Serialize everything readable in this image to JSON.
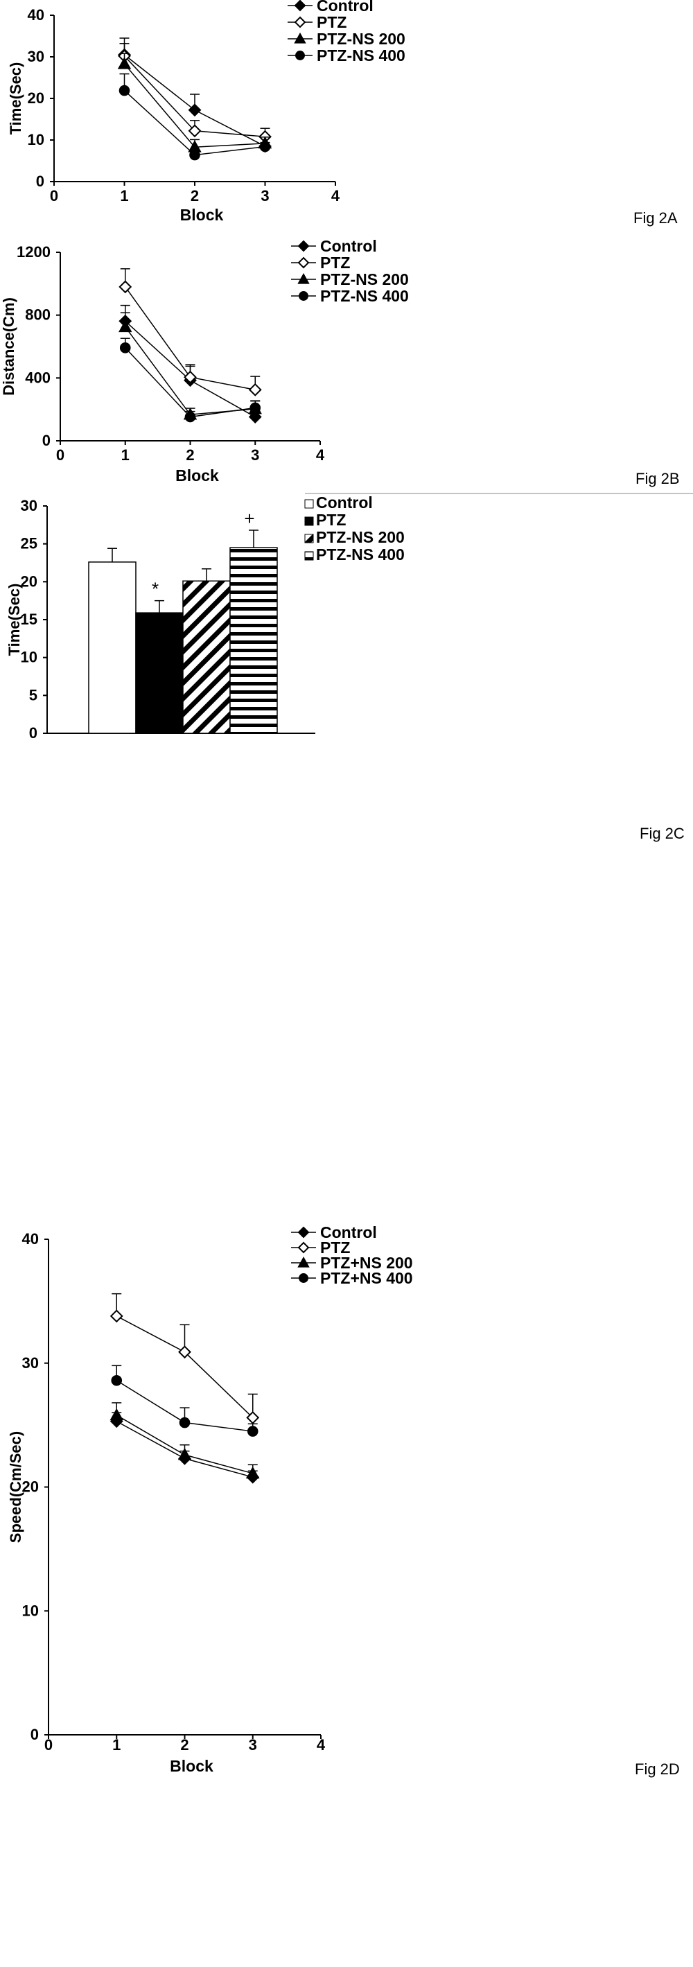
{
  "chart_data": [
    {
      "type": "line",
      "figure_label": "Fig 2A",
      "ylabel": "Time(Sec)",
      "xlabel": "Block",
      "xlim": [
        0,
        4
      ],
      "ylim": [
        0,
        40
      ],
      "x_ticks": [
        "0",
        "1",
        "2",
        "3",
        "4"
      ],
      "y_ticks": [
        "0",
        "10",
        "20",
        "30",
        "40"
      ],
      "legend_position": "top-right",
      "x": [
        1,
        2,
        3
      ],
      "series": [
        {
          "name": "Control",
          "marker": "diamond",
          "filled": true,
          "values": [
            30.5,
            17.2,
            8.5
          ],
          "errors": [
            4.0,
            3.8,
            2.0
          ]
        },
        {
          "name": "PTZ",
          "marker": "diamond",
          "filled": false,
          "values": [
            30.2,
            12.2,
            10.8
          ],
          "errors": [
            3.0,
            2.5,
            2.0
          ]
        },
        {
          "name": "PTZ-NS 200",
          "marker": "triangle",
          "filled": true,
          "values": [
            28.3,
            8.3,
            9.2
          ],
          "errors": [
            2.5,
            1.8,
            1.5
          ]
        },
        {
          "name": "PTZ-NS 400",
          "marker": "circle",
          "filled": true,
          "values": [
            21.9,
            6.4,
            8.4
          ],
          "errors": [
            4.0,
            1.0,
            1.0
          ]
        }
      ]
    },
    {
      "type": "line",
      "figure_label": "Fig 2B",
      "ylabel": "Distance(Cm)",
      "xlabel": "Block",
      "xlim": [
        0,
        4
      ],
      "ylim": [
        0,
        1200
      ],
      "x_ticks": [
        "0",
        "1",
        "2",
        "3",
        "4"
      ],
      "y_ticks": [
        "0",
        "400",
        "800",
        "1200"
      ],
      "legend_position": "top-right",
      "x": [
        1,
        2,
        3
      ],
      "series": [
        {
          "name": "Control",
          "marker": "diamond",
          "filled": true,
          "values": [
            762,
            385,
            152
          ],
          "errors": [
            100,
            90,
            40
          ]
        },
        {
          "name": "PTZ",
          "marker": "diamond",
          "filled": false,
          "values": [
            980,
            405,
            325
          ],
          "errors": [
            115,
            80,
            85
          ]
        },
        {
          "name": "PTZ-NS 200",
          "marker": "triangle",
          "filled": true,
          "values": [
            725,
            167,
            203
          ],
          "errors": [
            90,
            40,
            50
          ]
        },
        {
          "name": "PTZ-NS 400",
          "marker": "circle",
          "filled": true,
          "values": [
            592,
            152,
            210
          ],
          "errors": [
            60,
            35,
            45
          ]
        }
      ]
    },
    {
      "type": "bar",
      "figure_label": "Fig 2C",
      "ylabel": "Time(Sec)",
      "xlabel": "",
      "ylim": [
        0,
        30
      ],
      "y_ticks": [
        "0",
        "5",
        "10",
        "15",
        "20",
        "25",
        "30"
      ],
      "legend_position": "top-right",
      "categories": [
        "Control",
        "PTZ",
        "PTZ-NS 200",
        "PTZ-NS 400"
      ],
      "values": [
        22.6,
        15.9,
        20.1,
        24.5
      ],
      "errors": [
        1.8,
        1.6,
        1.6,
        2.3
      ],
      "patterns": [
        "white",
        "black",
        "diagonal",
        "horizontal"
      ],
      "annotations": [
        "",
        "*",
        "",
        "+"
      ],
      "legend_entries": [
        "Control",
        "PTZ",
        "PTZ-NS 200",
        "PTZ-NS 400"
      ]
    },
    {
      "type": "line",
      "figure_label": "Fig 2D",
      "ylabel": "Speed(Cm/Sec)",
      "xlabel": "Block",
      "xlim": [
        0,
        4
      ],
      "ylim": [
        0,
        40
      ],
      "x_ticks": [
        "0",
        "1",
        "2",
        "3",
        "4"
      ],
      "y_ticks": [
        "0",
        "10",
        "20",
        "30",
        "40"
      ],
      "legend_position": "top-right",
      "x": [
        1,
        2,
        3
      ],
      "series": [
        {
          "name": "Control",
          "marker": "diamond",
          "filled": true,
          "values": [
            25.3,
            22.3,
            20.8
          ],
          "errors": [
            0.7,
            0.6,
            0.5
          ]
        },
        {
          "name": "PTZ",
          "marker": "diamond",
          "filled": false,
          "values": [
            33.8,
            30.9,
            25.6
          ],
          "errors": [
            1.8,
            2.2,
            1.9
          ]
        },
        {
          "name": "PTZ+NS 200",
          "marker": "triangle",
          "filled": true,
          "values": [
            25.8,
            22.6,
            21.1
          ],
          "errors": [
            1.0,
            0.8,
            0.7
          ]
        },
        {
          "name": "PTZ+NS 400",
          "marker": "circle",
          "filled": true,
          "values": [
            28.6,
            25.2,
            24.5
          ],
          "errors": [
            1.2,
            1.2,
            0.6
          ]
        }
      ]
    }
  ]
}
